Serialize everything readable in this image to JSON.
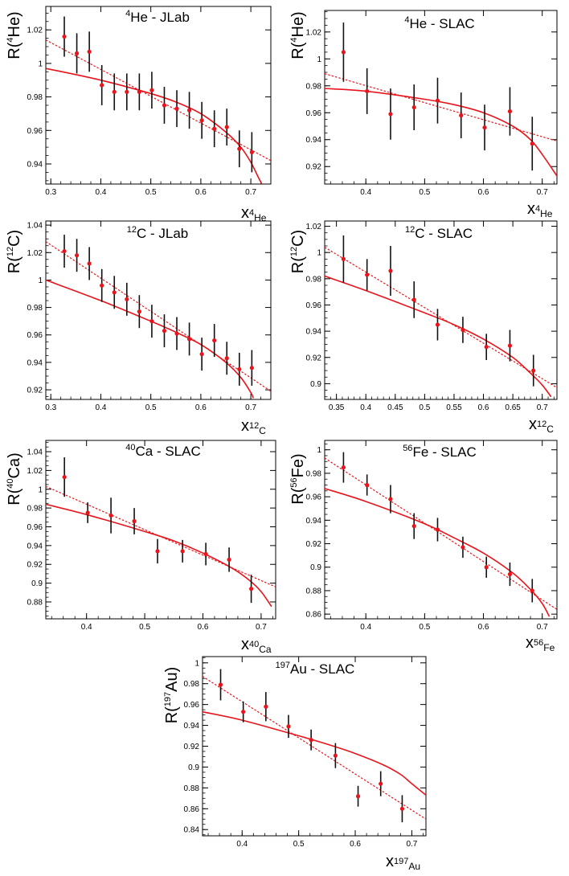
{
  "chart_data": [
    {
      "type": "scatter",
      "title": {
        "sup": "4",
        "main": "He - JLab"
      },
      "ylabel": {
        "pre": "R(",
        "sup": "4",
        "main": "He",
        "post": ")"
      },
      "xlabel": {
        "main": "x",
        "sub": "4",
        "sub2": "He"
      },
      "xlim": [
        0.29,
        0.74
      ],
      "ylim": [
        0.928,
        1.034
      ],
      "xticks": [
        0.3,
        0.4,
        0.5,
        0.6,
        0.7
      ],
      "xtick_labels": [
        "0.3",
        "0.4",
        "0.5",
        "0.6",
        "0.7"
      ],
      "yticks": [
        0.94,
        0.96,
        0.98,
        1.0,
        1.02
      ],
      "ytick_labels": [
        "0.94",
        "0.96",
        "0.98",
        "1",
        "1.02"
      ],
      "points": [
        {
          "x": 0.327,
          "y": 1.016,
          "err": 0.012
        },
        {
          "x": 0.352,
          "y": 1.006,
          "err": 0.012
        },
        {
          "x": 0.377,
          "y": 1.007,
          "err": 0.012
        },
        {
          "x": 0.402,
          "y": 0.987,
          "err": 0.012
        },
        {
          "x": 0.427,
          "y": 0.983,
          "err": 0.011
        },
        {
          "x": 0.452,
          "y": 0.983,
          "err": 0.011
        },
        {
          "x": 0.477,
          "y": 0.983,
          "err": 0.011
        },
        {
          "x": 0.502,
          "y": 0.984,
          "err": 0.011
        },
        {
          "x": 0.527,
          "y": 0.975,
          "err": 0.011
        },
        {
          "x": 0.552,
          "y": 0.973,
          "err": 0.011
        },
        {
          "x": 0.577,
          "y": 0.972,
          "err": 0.011
        },
        {
          "x": 0.602,
          "y": 0.966,
          "err": 0.011
        },
        {
          "x": 0.627,
          "y": 0.961,
          "err": 0.011
        },
        {
          "x": 0.652,
          "y": 0.962,
          "err": 0.011
        },
        {
          "x": 0.677,
          "y": 0.949,
          "err": 0.011
        },
        {
          "x": 0.702,
          "y": 0.947,
          "err": 0.012
        }
      ],
      "linear_fit": [
        {
          "x": 0.29,
          "y": 1.014
        },
        {
          "x": 0.74,
          "y": 0.942
        }
      ],
      "curve_fit": [
        {
          "x": 0.29,
          "y": 0.997
        },
        {
          "x": 0.4,
          "y": 0.99
        },
        {
          "x": 0.5,
          "y": 0.982
        },
        {
          "x": 0.55,
          "y": 0.977
        },
        {
          "x": 0.6,
          "y": 0.97
        },
        {
          "x": 0.65,
          "y": 0.959
        },
        {
          "x": 0.68,
          "y": 0.95
        },
        {
          "x": 0.7,
          "y": 0.941
        },
        {
          "x": 0.715,
          "y": 0.932
        },
        {
          "x": 0.722,
          "y": 0.928
        }
      ]
    },
    {
      "type": "scatter",
      "title": {
        "sup": "4",
        "main": "He - SLAC"
      },
      "ylabel": {
        "pre": "R(",
        "sup": "4",
        "main": "He",
        "post": ")"
      },
      "xlabel": {
        "main": "x",
        "sub": "4",
        "sub2": "He"
      },
      "xlim": [
        0.33,
        0.725
      ],
      "ylim": [
        0.907,
        1.036
      ],
      "xticks": [
        0.4,
        0.5,
        0.6,
        0.7
      ],
      "xtick_labels": [
        "0.4",
        "0.5",
        "0.6",
        "0.7"
      ],
      "yticks": [
        0.92,
        0.94,
        0.96,
        0.98,
        1.0,
        1.02
      ],
      "ytick_labels": [
        "0.92",
        "0.94",
        "0.96",
        "0.98",
        "1",
        "1.02"
      ],
      "points": [
        {
          "x": 0.362,
          "y": 1.005,
          "err": 0.022
        },
        {
          "x": 0.402,
          "y": 0.976,
          "err": 0.017
        },
        {
          "x": 0.442,
          "y": 0.959,
          "err": 0.019
        },
        {
          "x": 0.482,
          "y": 0.964,
          "err": 0.017
        },
        {
          "x": 0.522,
          "y": 0.969,
          "err": 0.017
        },
        {
          "x": 0.562,
          "y": 0.958,
          "err": 0.017
        },
        {
          "x": 0.602,
          "y": 0.949,
          "err": 0.017
        },
        {
          "x": 0.645,
          "y": 0.961,
          "err": 0.018
        },
        {
          "x": 0.683,
          "y": 0.937,
          "err": 0.02
        }
      ],
      "linear_fit": [
        {
          "x": 0.33,
          "y": 0.989
        },
        {
          "x": 0.725,
          "y": 0.939
        }
      ],
      "curve_fit": [
        {
          "x": 0.33,
          "y": 0.978
        },
        {
          "x": 0.4,
          "y": 0.976
        },
        {
          "x": 0.5,
          "y": 0.97
        },
        {
          "x": 0.55,
          "y": 0.966
        },
        {
          "x": 0.6,
          "y": 0.96
        },
        {
          "x": 0.65,
          "y": 0.95
        },
        {
          "x": 0.68,
          "y": 0.94
        },
        {
          "x": 0.7,
          "y": 0.929
        },
        {
          "x": 0.725,
          "y": 0.913
        }
      ]
    },
    {
      "type": "scatter",
      "title": {
        "sup": "12",
        "main": "C - JLab"
      },
      "ylabel": {
        "pre": "R(",
        "sup": "12",
        "main": "C",
        "post": ")"
      },
      "xlabel": {
        "main": "x",
        "sub": "12",
        "sub2": "C"
      },
      "xlim": [
        0.29,
        0.74
      ],
      "ylim": [
        0.913,
        1.043
      ],
      "xticks": [
        0.3,
        0.4,
        0.5,
        0.6,
        0.7
      ],
      "xtick_labels": [
        "0.3",
        "0.4",
        "0.5",
        "0.6",
        "0.7"
      ],
      "yticks": [
        0.92,
        0.94,
        0.96,
        0.98,
        1.0,
        1.02,
        1.04
      ],
      "ytick_labels": [
        "0.92",
        "0.94",
        "0.96",
        "0.98",
        "1",
        "1.02",
        "1.04"
      ],
      "points": [
        {
          "x": 0.327,
          "y": 1.021,
          "err": 0.012
        },
        {
          "x": 0.352,
          "y": 1.018,
          "err": 0.012
        },
        {
          "x": 0.377,
          "y": 1.012,
          "err": 0.012
        },
        {
          "x": 0.402,
          "y": 0.996,
          "err": 0.012
        },
        {
          "x": 0.427,
          "y": 0.991,
          "err": 0.012
        },
        {
          "x": 0.452,
          "y": 0.986,
          "err": 0.012
        },
        {
          "x": 0.477,
          "y": 0.977,
          "err": 0.012
        },
        {
          "x": 0.502,
          "y": 0.97,
          "err": 0.012
        },
        {
          "x": 0.527,
          "y": 0.963,
          "err": 0.012
        },
        {
          "x": 0.552,
          "y": 0.961,
          "err": 0.012
        },
        {
          "x": 0.577,
          "y": 0.957,
          "err": 0.012
        },
        {
          "x": 0.602,
          "y": 0.946,
          "err": 0.012
        },
        {
          "x": 0.627,
          "y": 0.956,
          "err": 0.012
        },
        {
          "x": 0.652,
          "y": 0.943,
          "err": 0.012
        },
        {
          "x": 0.677,
          "y": 0.935,
          "err": 0.012
        },
        {
          "x": 0.702,
          "y": 0.936,
          "err": 0.013
        }
      ],
      "linear_fit": [
        {
          "x": 0.29,
          "y": 1.028
        },
        {
          "x": 0.74,
          "y": 0.919
        }
      ],
      "curve_fit": [
        {
          "x": 0.29,
          "y": 1.0
        },
        {
          "x": 0.4,
          "y": 0.985
        },
        {
          "x": 0.5,
          "y": 0.97
        },
        {
          "x": 0.55,
          "y": 0.962
        },
        {
          "x": 0.6,
          "y": 0.953
        },
        {
          "x": 0.65,
          "y": 0.94
        },
        {
          "x": 0.68,
          "y": 0.929
        },
        {
          "x": 0.7,
          "y": 0.918
        },
        {
          "x": 0.705,
          "y": 0.914
        }
      ]
    },
    {
      "type": "scatter",
      "title": {
        "sup": "12",
        "main": "C - SLAC"
      },
      "ylabel": {
        "pre": "R(",
        "sup": "12",
        "main": "C",
        "post": ")"
      },
      "xlabel": {
        "main": "x",
        "sub": "12",
        "sub2": "C"
      },
      "xlim": [
        0.33,
        0.725
      ],
      "ylim": [
        0.888,
        1.024
      ],
      "xticks": [
        0.35,
        0.4,
        0.45,
        0.5,
        0.55,
        0.6,
        0.65,
        0.7
      ],
      "xtick_labels": [
        "0.35",
        "0.4",
        "0.45",
        "0.5",
        "0.55",
        "0.6",
        "0.65",
        "0.7"
      ],
      "yticks": [
        0.9,
        0.92,
        0.94,
        0.96,
        0.98,
        1.0,
        1.02
      ],
      "ytick_labels": [
        "0.9",
        "0.92",
        "0.94",
        "0.96",
        "0.98",
        "1",
        "1.02"
      ],
      "points": [
        {
          "x": 0.362,
          "y": 0.995,
          "err": 0.018
        },
        {
          "x": 0.402,
          "y": 0.983,
          "err": 0.012
        },
        {
          "x": 0.442,
          "y": 0.986,
          "err": 0.019
        },
        {
          "x": 0.482,
          "y": 0.964,
          "err": 0.014
        },
        {
          "x": 0.522,
          "y": 0.945,
          "err": 0.012
        },
        {
          "x": 0.565,
          "y": 0.941,
          "err": 0.01
        },
        {
          "x": 0.605,
          "y": 0.928,
          "err": 0.01
        },
        {
          "x": 0.645,
          "y": 0.929,
          "err": 0.012
        },
        {
          "x": 0.685,
          "y": 0.91,
          "err": 0.012
        }
      ],
      "linear_fit": [
        {
          "x": 0.33,
          "y": 1.004
        },
        {
          "x": 0.725,
          "y": 0.897
        }
      ],
      "curve_fit": [
        {
          "x": 0.33,
          "y": 0.982
        },
        {
          "x": 0.4,
          "y": 0.971
        },
        {
          "x": 0.5,
          "y": 0.954
        },
        {
          "x": 0.55,
          "y": 0.945
        },
        {
          "x": 0.6,
          "y": 0.934
        },
        {
          "x": 0.65,
          "y": 0.92
        },
        {
          "x": 0.68,
          "y": 0.908
        },
        {
          "x": 0.7,
          "y": 0.899
        },
        {
          "x": 0.715,
          "y": 0.89
        }
      ]
    },
    {
      "type": "scatter",
      "title": {
        "sup": "40",
        "main": "Ca - SLAC"
      },
      "ylabel": {
        "pre": "R(",
        "sup": "40",
        "main": "Ca",
        "post": ")"
      },
      "xlabel": {
        "main": "x",
        "sub": "40",
        "sub2": "Ca"
      },
      "xlim": [
        0.33,
        0.725
      ],
      "ylim": [
        0.862,
        1.052
      ],
      "xticks": [
        0.4,
        0.5,
        0.6,
        0.7
      ],
      "xtick_labels": [
        "0.4",
        "0.5",
        "0.6",
        "0.7"
      ],
      "yticks": [
        0.88,
        0.9,
        0.92,
        0.94,
        0.96,
        0.98,
        1.0,
        1.02,
        1.04
      ],
      "ytick_labels": [
        "0.88",
        "0.9",
        "0.92",
        "0.94",
        "0.96",
        "0.98",
        "1",
        "1.02",
        "1.04"
      ],
      "points": [
        {
          "x": 0.362,
          "y": 1.013,
          "err": 0.021
        },
        {
          "x": 0.402,
          "y": 0.975,
          "err": 0.011
        },
        {
          "x": 0.442,
          "y": 0.972,
          "err": 0.019
        },
        {
          "x": 0.482,
          "y": 0.966,
          "err": 0.014
        },
        {
          "x": 0.522,
          "y": 0.934,
          "err": 0.013
        },
        {
          "x": 0.565,
          "y": 0.934,
          "err": 0.012
        },
        {
          "x": 0.605,
          "y": 0.931,
          "err": 0.012
        },
        {
          "x": 0.645,
          "y": 0.925,
          "err": 0.013
        },
        {
          "x": 0.683,
          "y": 0.894,
          "err": 0.015
        }
      ],
      "linear_fit": [
        {
          "x": 0.33,
          "y": 1.003
        },
        {
          "x": 0.725,
          "y": 0.896
        }
      ],
      "curve_fit": [
        {
          "x": 0.33,
          "y": 0.984
        },
        {
          "x": 0.4,
          "y": 0.973
        },
        {
          "x": 0.5,
          "y": 0.955
        },
        {
          "x": 0.55,
          "y": 0.945
        },
        {
          "x": 0.6,
          "y": 0.932
        },
        {
          "x": 0.65,
          "y": 0.916
        },
        {
          "x": 0.68,
          "y": 0.903
        },
        {
          "x": 0.7,
          "y": 0.891
        },
        {
          "x": 0.718,
          "y": 0.875
        }
      ]
    },
    {
      "type": "scatter",
      "title": {
        "sup": "56",
        "main": "Fe - SLAC"
      },
      "ylabel": {
        "pre": "R(",
        "sup": "56",
        "main": "Fe",
        "post": ")"
      },
      "xlabel": {
        "main": "x",
        "sub": "56",
        "sub2": "Fe"
      },
      "xlim": [
        0.33,
        0.725
      ],
      "ylim": [
        0.856,
        1.008
      ],
      "xticks": [
        0.4,
        0.5,
        0.6,
        0.7
      ],
      "xtick_labels": [
        "0.4",
        "0.5",
        "0.6",
        "0.7"
      ],
      "yticks": [
        0.86,
        0.88,
        0.9,
        0.92,
        0.94,
        0.96,
        0.98,
        1.0
      ],
      "ytick_labels": [
        "0.86",
        "0.88",
        "0.9",
        "0.92",
        "0.94",
        "0.96",
        "0.98",
        "1"
      ],
      "points": [
        {
          "x": 0.362,
          "y": 0.985,
          "err": 0.013
        },
        {
          "x": 0.402,
          "y": 0.97,
          "err": 0.009
        },
        {
          "x": 0.442,
          "y": 0.958,
          "err": 0.012
        },
        {
          "x": 0.482,
          "y": 0.935,
          "err": 0.011
        },
        {
          "x": 0.522,
          "y": 0.932,
          "err": 0.01
        },
        {
          "x": 0.565,
          "y": 0.917,
          "err": 0.009
        },
        {
          "x": 0.605,
          "y": 0.9,
          "err": 0.009
        },
        {
          "x": 0.645,
          "y": 0.894,
          "err": 0.01
        },
        {
          "x": 0.683,
          "y": 0.88,
          "err": 0.01
        }
      ],
      "linear_fit": [
        {
          "x": 0.33,
          "y": 0.993
        },
        {
          "x": 0.725,
          "y": 0.864
        }
      ],
      "curve_fit": [
        {
          "x": 0.33,
          "y": 0.967
        },
        {
          "x": 0.4,
          "y": 0.956
        },
        {
          "x": 0.5,
          "y": 0.937
        },
        {
          "x": 0.55,
          "y": 0.925
        },
        {
          "x": 0.6,
          "y": 0.912
        },
        {
          "x": 0.65,
          "y": 0.895
        },
        {
          "x": 0.68,
          "y": 0.881
        },
        {
          "x": 0.7,
          "y": 0.869
        },
        {
          "x": 0.712,
          "y": 0.858
        }
      ]
    },
    {
      "type": "scatter",
      "title": {
        "sup": "197",
        "main": "Au - SLAC"
      },
      "ylabel": {
        "pre": "R(",
        "sup": "197",
        "main": "Au",
        "post": ")"
      },
      "xlabel": {
        "main": "x",
        "sub": "197",
        "sub2": "Au"
      },
      "xlim": [
        0.33,
        0.725
      ],
      "ylim": [
        0.834,
        1.006
      ],
      "xticks": [
        0.4,
        0.5,
        0.6,
        0.7
      ],
      "xtick_labels": [
        "0.4",
        "0.5",
        "0.6",
        "0.7"
      ],
      "yticks": [
        0.84,
        0.86,
        0.88,
        0.9,
        0.92,
        0.94,
        0.96,
        0.98,
        1.0
      ],
      "ytick_labels": [
        "0.84",
        "0.86",
        "0.88",
        "0.9",
        "0.92",
        "0.94",
        "0.96",
        "0.98",
        "1"
      ],
      "points": [
        {
          "x": 0.362,
          "y": 0.979,
          "err": 0.015
        },
        {
          "x": 0.402,
          "y": 0.953,
          "err": 0.01
        },
        {
          "x": 0.442,
          "y": 0.958,
          "err": 0.014
        },
        {
          "x": 0.482,
          "y": 0.939,
          "err": 0.011
        },
        {
          "x": 0.522,
          "y": 0.926,
          "err": 0.01
        },
        {
          "x": 0.565,
          "y": 0.911,
          "err": 0.012
        },
        {
          "x": 0.605,
          "y": 0.872,
          "err": 0.01
        },
        {
          "x": 0.645,
          "y": 0.884,
          "err": 0.012
        },
        {
          "x": 0.683,
          "y": 0.86,
          "err": 0.013
        }
      ],
      "linear_fit": [
        {
          "x": 0.33,
          "y": 0.987
        },
        {
          "x": 0.725,
          "y": 0.85
        }
      ],
      "curve_fit": [
        {
          "x": 0.33,
          "y": 0.953
        },
        {
          "x": 0.4,
          "y": 0.945
        },
        {
          "x": 0.5,
          "y": 0.93
        },
        {
          "x": 0.55,
          "y": 0.922
        },
        {
          "x": 0.6,
          "y": 0.913
        },
        {
          "x": 0.65,
          "y": 0.902
        },
        {
          "x": 0.68,
          "y": 0.893
        },
        {
          "x": 0.7,
          "y": 0.884
        },
        {
          "x": 0.725,
          "y": 0.873
        }
      ]
    }
  ],
  "colors": {
    "data": "#e8141b",
    "error_bar": "#111111",
    "fit": "#e8141b",
    "axis": "#000000"
  }
}
